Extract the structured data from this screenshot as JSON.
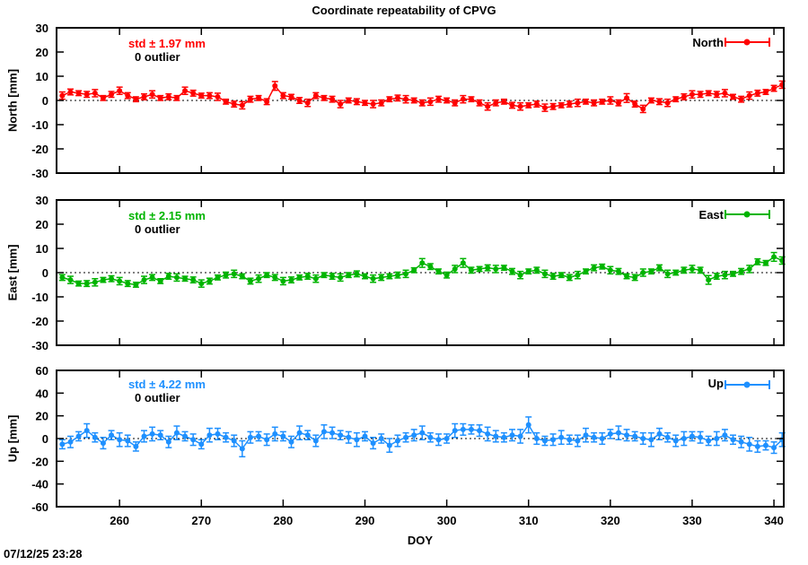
{
  "title": "Coordinate repeatability of CPVG",
  "timestamp": "07/12/25 23:28",
  "xlabel": "DOY",
  "colors": {
    "north": "#ff0000",
    "east": "#00b400",
    "up": "#1e90ff",
    "axis": "#000000",
    "background": "#ffffff"
  },
  "chart_data": [
    {
      "type": "line",
      "name": "North",
      "legend": "North",
      "ylabel": "North [mm]",
      "std_label": "std ± 1.97 mm",
      "outlier_label": "0 outlier",
      "color": "#ff0000",
      "xlim": [
        252.3,
        341.2
      ],
      "xticks": [
        260,
        270,
        280,
        290,
        300,
        310,
        320,
        330,
        340
      ],
      "ylim": [
        -30,
        30
      ],
      "yticks": [
        -30,
        -20,
        -10,
        0,
        10,
        20,
        30
      ],
      "grid": "zero-line-only",
      "legend_position": "top-right",
      "x_range": [
        253,
        341
      ],
      "x_step": 1,
      "y": [
        2.0,
        3.5,
        3.0,
        2.5,
        3.0,
        1.0,
        2.5,
        4.0,
        2.0,
        0.5,
        1.5,
        2.5,
        1.0,
        1.5,
        1.0,
        4.0,
        3.0,
        2.0,
        2.0,
        1.5,
        -0.5,
        -1.5,
        -2.0,
        0.5,
        1.0,
        -0.5,
        6.0,
        2.0,
        1.5,
        0.0,
        -1.0,
        2.0,
        1.0,
        0.5,
        -1.5,
        0.0,
        -0.5,
        -1.0,
        -1.5,
        -1.0,
        0.5,
        1.0,
        0.5,
        0.0,
        -1.0,
        -0.5,
        0.5,
        0.0,
        -1.0,
        0.5,
        0.5,
        -1.0,
        -2.5,
        -1.0,
        -0.5,
        -2.0,
        -2.5,
        -2.0,
        -1.5,
        -3.0,
        -2.5,
        -2.0,
        -1.5,
        -1.0,
        -0.5,
        -1.0,
        -0.5,
        0.0,
        -1.0,
        1.0,
        -1.5,
        -3.5,
        0.0,
        -0.5,
        -1.0,
        0.5,
        1.5,
        2.5,
        2.5,
        3.0,
        2.5,
        3.0,
        1.5,
        0.5,
        2.0,
        3.0,
        3.5,
        5.0,
        6.5
      ],
      "yerr": [
        1.5,
        1.2,
        1.0,
        1.2,
        1.5,
        1.0,
        1.2,
        1.5,
        1.2,
        1.0,
        1.2,
        1.5,
        1.0,
        1.2,
        1.0,
        1.5,
        1.2,
        1.0,
        1.2,
        1.5,
        1.0,
        1.2,
        1.5,
        1.2,
        1.0,
        1.2,
        1.8,
        1.2,
        1.0,
        1.2,
        1.5,
        1.2,
        1.0,
        1.2,
        1.5,
        1.0,
        1.2,
        1.0,
        1.5,
        1.2,
        1.0,
        1.2,
        1.5,
        1.0,
        1.2,
        1.5,
        1.2,
        1.0,
        1.2,
        1.5,
        1.0,
        1.2,
        1.5,
        1.2,
        1.0,
        1.2,
        1.5,
        1.0,
        1.2,
        1.5,
        1.2,
        1.0,
        1.2,
        1.5,
        1.0,
        1.2,
        1.0,
        1.5,
        1.2,
        1.8,
        1.2,
        1.5,
        1.0,
        1.2,
        1.5,
        1.0,
        1.2,
        1.5,
        1.2,
        1.0,
        1.2,
        1.5,
        1.0,
        1.2,
        1.5,
        1.2,
        1.0,
        1.2,
        1.5
      ]
    },
    {
      "type": "line",
      "name": "East",
      "legend": "East",
      "ylabel": "East [mm]",
      "std_label": "std ± 2.15 mm",
      "outlier_label": "0 outlier",
      "color": "#00b400",
      "xlim": [
        252.3,
        341.2
      ],
      "xticks": [
        260,
        270,
        280,
        290,
        300,
        310,
        320,
        330,
        340
      ],
      "ylim": [
        -30,
        30
      ],
      "yticks": [
        -30,
        -20,
        -10,
        0,
        10,
        20,
        30
      ],
      "grid": "zero-line-only",
      "legend_position": "top-right",
      "x_range": [
        253,
        341
      ],
      "x_step": 1,
      "y": [
        -2.0,
        -3.0,
        -4.5,
        -4.5,
        -4.0,
        -3.0,
        -2.5,
        -3.5,
        -4.5,
        -5.0,
        -3.0,
        -2.0,
        -3.5,
        -1.5,
        -2.0,
        -2.5,
        -3.0,
        -4.5,
        -3.5,
        -2.0,
        -1.0,
        -0.5,
        -1.5,
        -3.5,
        -2.5,
        -1.0,
        -2.0,
        -3.5,
        -3.0,
        -2.0,
        -1.5,
        -2.5,
        -1.0,
        -1.5,
        -2.0,
        -1.0,
        -0.5,
        -1.5,
        -2.5,
        -2.0,
        -1.5,
        -1.0,
        -0.5,
        1.0,
        4.0,
        2.5,
        0.5,
        -1.0,
        1.5,
        4.0,
        1.0,
        1.5,
        2.0,
        1.5,
        2.0,
        0.5,
        -1.0,
        0.5,
        1.0,
        -0.5,
        -1.5,
        -1.0,
        -2.0,
        -1.0,
        0.5,
        2.0,
        2.5,
        1.0,
        0.5,
        -1.5,
        -2.0,
        0.0,
        0.5,
        2.0,
        -0.5,
        0.0,
        1.0,
        1.5,
        1.0,
        -3.0,
        -1.5,
        -1.0,
        -0.5,
        0.5,
        1.5,
        4.5,
        4.0,
        6.5,
        5.0
      ],
      "yerr": [
        1.2,
        1.5,
        1.0,
        1.2,
        1.5,
        1.0,
        1.2,
        1.5,
        1.2,
        1.0,
        1.5,
        1.2,
        1.0,
        1.2,
        1.5,
        1.0,
        1.2,
        1.5,
        1.2,
        1.0,
        1.2,
        1.5,
        1.0,
        1.2,
        1.5,
        1.0,
        1.2,
        1.5,
        1.2,
        1.0,
        1.2,
        1.5,
        1.0,
        1.2,
        1.5,
        1.0,
        1.2,
        1.0,
        1.5,
        1.2,
        1.0,
        1.2,
        1.5,
        1.0,
        1.8,
        1.2,
        1.0,
        1.2,
        1.5,
        1.8,
        1.2,
        1.0,
        1.2,
        1.5,
        1.0,
        1.2,
        1.5,
        1.0,
        1.2,
        1.5,
        1.2,
        1.0,
        1.2,
        1.5,
        1.0,
        1.2,
        1.0,
        1.5,
        1.2,
        1.0,
        1.2,
        1.5,
        1.0,
        1.2,
        1.5,
        1.0,
        1.2,
        1.5,
        1.2,
        1.8,
        1.2,
        1.5,
        1.0,
        1.2,
        1.5,
        1.2,
        1.0,
        1.8,
        1.5
      ]
    },
    {
      "type": "line",
      "name": "Up",
      "legend": "Up",
      "ylabel": "Up [mm]",
      "std_label": "std ± 4.22 mm",
      "outlier_label": "0 outlier",
      "color": "#1e90ff",
      "xlim": [
        252.3,
        341.2
      ],
      "xticks": [
        260,
        270,
        280,
        290,
        300,
        310,
        320,
        330,
        340
      ],
      "ylim": [
        -60,
        60
      ],
      "yticks": [
        -60,
        -40,
        -20,
        0,
        20,
        40,
        60
      ],
      "grid": "zero-line-only",
      "legend_position": "top-right",
      "x_range": [
        253,
        341
      ],
      "x_step": 1,
      "y": [
        -5,
        -3,
        2,
        7,
        1,
        -4,
        3,
        -1,
        -2,
        -7,
        2,
        4,
        3,
        -3,
        5,
        2,
        -1,
        -5,
        3,
        4,
        1,
        -2,
        -9,
        1,
        2,
        -1,
        4,
        2,
        -3,
        5,
        3,
        -2,
        6,
        5,
        3,
        1,
        -1,
        2,
        -4,
        0,
        -6,
        -2,
        1,
        3,
        5,
        1,
        -1,
        0,
        7,
        8,
        8,
        7,
        4,
        2,
        1,
        3,
        2,
        12,
        0,
        -2,
        -1,
        1,
        -1,
        -2,
        3,
        1,
        0,
        4,
        5,
        3,
        2,
        0,
        -1,
        4,
        1,
        -2,
        0,
        2,
        1,
        -2,
        0,
        3,
        -1,
        -3,
        -5,
        -7,
        -6,
        -8,
        -1
      ],
      "yerr": [
        4,
        5,
        4,
        6,
        4,
        5,
        4,
        6,
        5,
        4,
        5,
        6,
        4,
        5,
        6,
        4,
        5,
        4,
        6,
        5,
        4,
        5,
        7,
        5,
        4,
        5,
        6,
        4,
        5,
        6,
        4,
        5,
        6,
        5,
        4,
        5,
        6,
        4,
        5,
        4,
        6,
        5,
        4,
        5,
        6,
        4,
        5,
        4,
        6,
        5,
        4,
        5,
        6,
        5,
        4,
        5,
        6,
        7,
        5,
        4,
        5,
        6,
        4,
        5,
        6,
        4,
        5,
        4,
        6,
        5,
        4,
        5,
        6,
        5,
        4,
        5,
        6,
        4,
        5,
        4,
        6,
        5,
        4,
        5,
        6,
        5,
        4,
        5,
        6
      ]
    }
  ]
}
